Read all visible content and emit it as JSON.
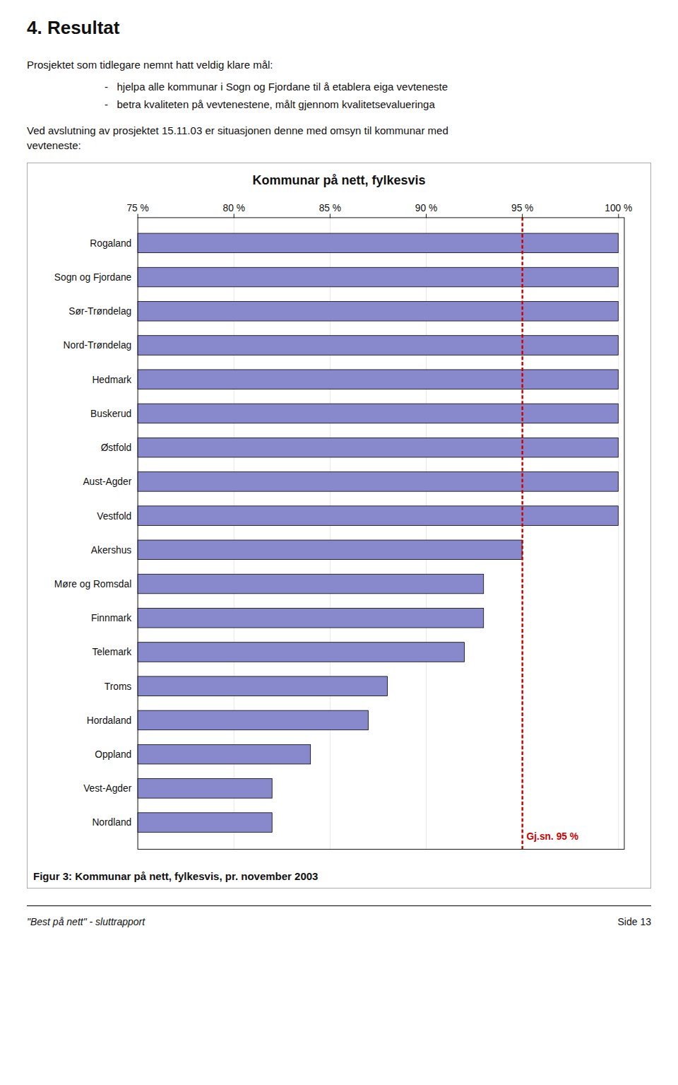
{
  "chart_data": {
    "type": "bar",
    "orientation": "horizontal",
    "title": "Kommunar på nett, fylkesvis",
    "categories": [
      "Rogaland",
      "Sogn og Fjordane",
      "Sør-Trøndelag",
      "Nord-Trøndelag",
      "Hedmark",
      "Buskerud",
      "Østfold",
      "Aust-Agder",
      "Vestfold",
      "Akershus",
      "Møre og Romsdal",
      "Finnmark",
      "Telemark",
      "Troms",
      "Hordaland",
      "Oppland",
      "Vest-Agder",
      "Nordland"
    ],
    "values": [
      100.0,
      100.0,
      100.0,
      100.0,
      100.0,
      100.0,
      100.0,
      100.0,
      100.0,
      95.0,
      93.0,
      93.0,
      92.0,
      88.0,
      87.0,
      84.0,
      82.0,
      82.0
    ],
    "color": "#8888cc",
    "xlim": [
      75,
      100.3
    ],
    "xticks": [
      {
        "value": 75,
        "label": "75 %"
      },
      {
        "value": 80,
        "label": "80 %"
      },
      {
        "value": 85,
        "label": "85 %"
      },
      {
        "value": 90,
        "label": "90 %"
      },
      {
        "value": 95,
        "label": "95 %"
      },
      {
        "value": 100,
        "label": "100 %"
      }
    ],
    "grid": true,
    "reference_line": {
      "value": 95,
      "label": "Gj.sn. 95 %",
      "color": "#cc0000"
    },
    "caption": "Figur 3: Kommunar på nett, fylkesvis, pr. november 2003"
  },
  "page_text": {
    "header": "4. Resultat",
    "intro": "Prosjektet som tidlegare nemnt hatt veldig klare mål:",
    "bullets": [
      "-   hjelpa alle kommunar i Sogn og Fjordane til å etablera eiga vevteneste",
      "-   betra kvaliteten på vevtenestene, målt gjennom kvalitetsevalueringa"
    ],
    "closing": "Ved avslutning av prosjektet 15.11.03 er situasjonen denne med omsyn til kommunar med\nvevteneste:",
    "bottom_left": "\"Best på nett\" - sluttrapport",
    "bottom_right": "Side 13"
  }
}
